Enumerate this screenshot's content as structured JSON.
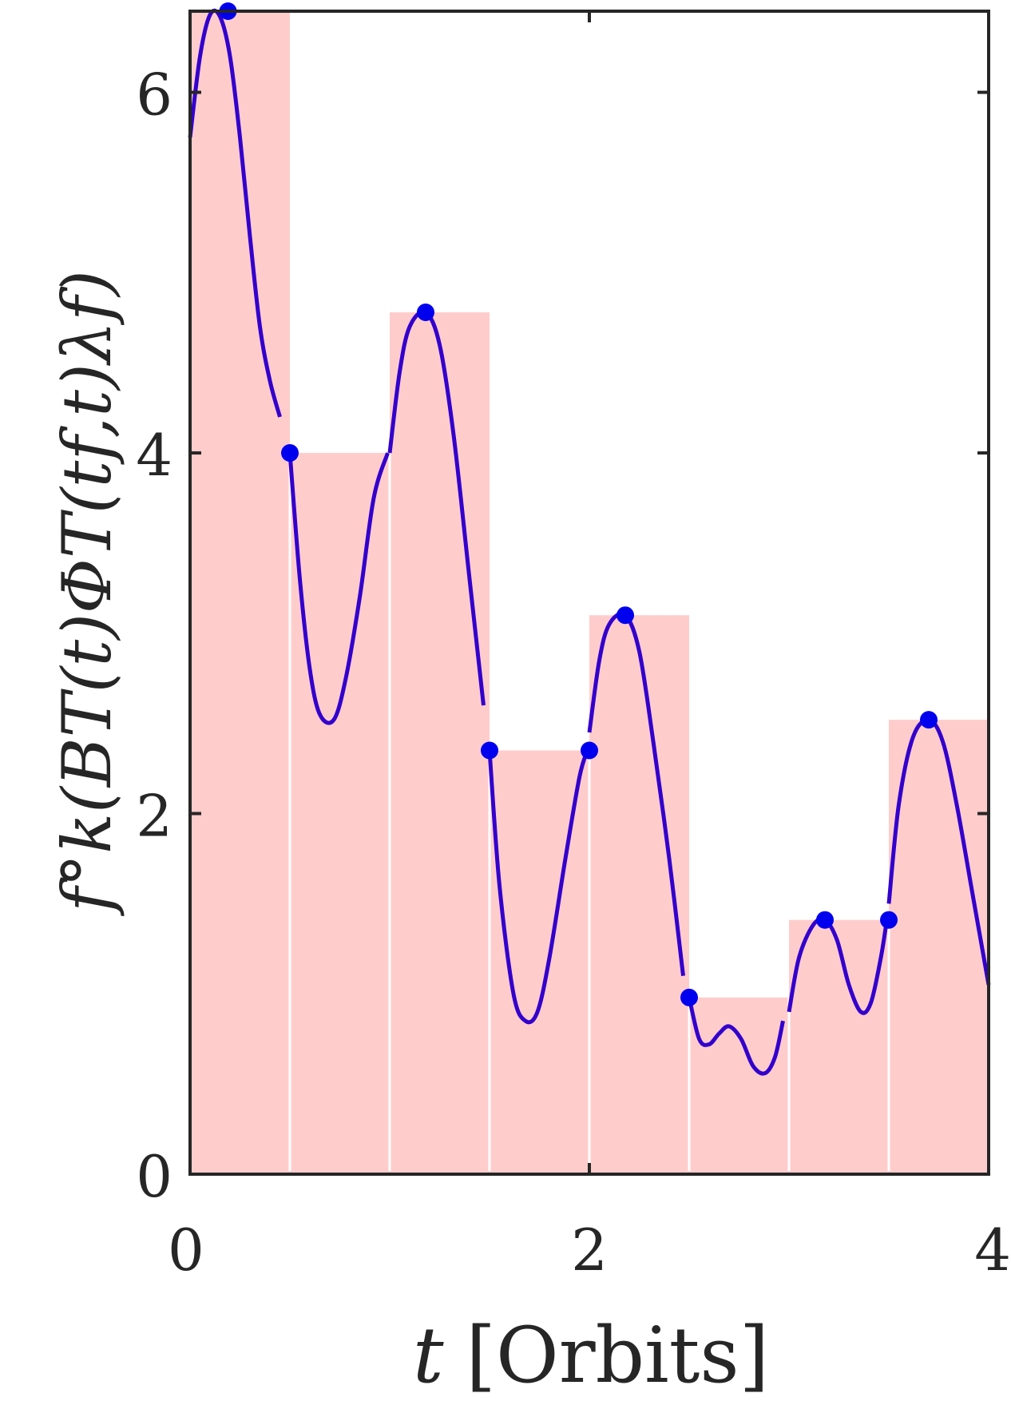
{
  "chart_data": {
    "type": "bar",
    "x_unit": "Orbits",
    "xlabel_var": "t",
    "xlabel_unit": "[Orbits]",
    "ylabel": "f°k(BT(t)ΦT(tf,t)λf)",
    "xlim": [
      0,
      4
    ],
    "ylim": [
      0,
      6.45
    ],
    "xticks": [
      0,
      2,
      4
    ],
    "yticks": [
      0,
      2,
      4,
      6
    ],
    "grid": false,
    "bar_color": "#ffcccc",
    "line_color": "#3300cc",
    "marker_color": "#0000ee",
    "bars": [
      {
        "x0": 0.0,
        "x1": 0.5,
        "value": 6.45
      },
      {
        "x0": 0.5,
        "x1": 1.0,
        "value": 4.0
      },
      {
        "x0": 1.0,
        "x1": 1.5,
        "value": 4.78
      },
      {
        "x0": 1.5,
        "x1": 2.0,
        "value": 2.35
      },
      {
        "x0": 2.0,
        "x1": 2.5,
        "value": 3.1
      },
      {
        "x0": 2.5,
        "x1": 3.0,
        "value": 0.98
      },
      {
        "x0": 3.0,
        "x1": 3.5,
        "value": 1.41
      },
      {
        "x0": 3.5,
        "x1": 4.0,
        "value": 2.52
      }
    ],
    "curve_segments": [
      [
        [
          0.0,
          5.75
        ],
        [
          0.05,
          6.2
        ],
        [
          0.1,
          6.43
        ],
        [
          0.15,
          6.42
        ],
        [
          0.2,
          6.2
        ],
        [
          0.25,
          5.75
        ],
        [
          0.3,
          5.2
        ],
        [
          0.35,
          4.7
        ],
        [
          0.4,
          4.4
        ],
        [
          0.45,
          4.2
        ]
      ],
      [
        [
          0.5,
          4.0
        ],
        [
          0.55,
          3.3
        ],
        [
          0.6,
          2.8
        ],
        [
          0.65,
          2.55
        ],
        [
          0.72,
          2.52
        ],
        [
          0.78,
          2.75
        ],
        [
          0.85,
          3.2
        ],
        [
          0.92,
          3.75
        ],
        [
          0.99,
          4.0
        ]
      ],
      [
        [
          1.0,
          4.0
        ],
        [
          1.05,
          4.45
        ],
        [
          1.1,
          4.7
        ],
        [
          1.18,
          4.78
        ],
        [
          1.25,
          4.6
        ],
        [
          1.32,
          4.1
        ],
        [
          1.4,
          3.3
        ],
        [
          1.47,
          2.6
        ]
      ],
      [
        [
          1.5,
          2.35
        ],
        [
          1.55,
          1.6
        ],
        [
          1.62,
          1.0
        ],
        [
          1.68,
          0.85
        ],
        [
          1.74,
          0.9
        ],
        [
          1.8,
          1.2
        ],
        [
          1.88,
          1.75
        ],
        [
          1.95,
          2.2
        ],
        [
          1.99,
          2.35
        ]
      ],
      [
        [
          2.0,
          2.45
        ],
        [
          2.05,
          2.85
        ],
        [
          2.1,
          3.05
        ],
        [
          2.18,
          3.1
        ],
        [
          2.25,
          2.9
        ],
        [
          2.32,
          2.4
        ],
        [
          2.4,
          1.75
        ],
        [
          2.47,
          1.1
        ]
      ],
      [
        [
          2.5,
          0.98
        ],
        [
          2.55,
          0.75
        ],
        [
          2.6,
          0.72
        ],
        [
          2.65,
          0.78
        ],
        [
          2.7,
          0.82
        ],
        [
          2.76,
          0.75
        ],
        [
          2.82,
          0.6
        ],
        [
          2.88,
          0.56
        ],
        [
          2.93,
          0.65
        ],
        [
          2.97,
          0.85
        ]
      ],
      [
        [
          3.0,
          0.9
        ],
        [
          3.05,
          1.2
        ],
        [
          3.12,
          1.38
        ],
        [
          3.18,
          1.41
        ],
        [
          3.24,
          1.3
        ],
        [
          3.3,
          1.05
        ],
        [
          3.36,
          0.9
        ],
        [
          3.41,
          0.95
        ],
        [
          3.46,
          1.2
        ],
        [
          3.49,
          1.41
        ]
      ],
      [
        [
          3.5,
          1.5
        ],
        [
          3.55,
          2.05
        ],
        [
          3.62,
          2.42
        ],
        [
          3.7,
          2.52
        ],
        [
          3.77,
          2.4
        ],
        [
          3.84,
          2.05
        ],
        [
          3.92,
          1.55
        ],
        [
          4.0,
          1.05
        ]
      ]
    ],
    "markers": [
      {
        "x": 0.19,
        "y": 6.45
      },
      {
        "x": 0.5,
        "y": 4.0
      },
      {
        "x": 1.18,
        "y": 4.78
      },
      {
        "x": 1.5,
        "y": 2.35
      },
      {
        "x": 2.0,
        "y": 2.35
      },
      {
        "x": 2.18,
        "y": 3.1
      },
      {
        "x": 2.5,
        "y": 0.98
      },
      {
        "x": 3.18,
        "y": 1.41
      },
      {
        "x": 3.5,
        "y": 1.41
      },
      {
        "x": 3.7,
        "y": 2.52
      }
    ]
  }
}
